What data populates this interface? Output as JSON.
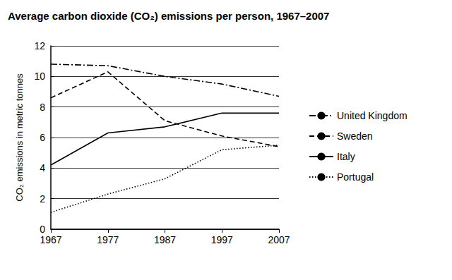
{
  "chart_data": {
    "type": "line",
    "title": "Average carbon dioxide (CO₂) emissions per person, 1967–2007",
    "y_label": "CO₂ emissions in metric tonnes",
    "categories": [
      "1967",
      "1977",
      "1987",
      "1997",
      "2007"
    ],
    "series": [
      {
        "name": "United Kingdom",
        "color": "#000000",
        "line_style": "dashdot",
        "values": [
          10.8,
          10.7,
          10.0,
          9.5,
          8.7
        ]
      },
      {
        "name": "Sweden",
        "color": "#000000",
        "line_style": "dashed",
        "values": [
          8.6,
          10.3,
          7.1,
          6.1,
          5.4
        ]
      },
      {
        "name": "Italy",
        "color": "#000000",
        "line_style": "solid",
        "values": [
          4.2,
          6.3,
          6.7,
          7.6,
          7.6
        ]
      },
      {
        "name": "Portugal",
        "color": "#000000",
        "line_style": "dotted",
        "values": [
          1.1,
          2.3,
          3.3,
          5.2,
          5.5
        ]
      }
    ],
    "ylim": [
      0,
      12
    ],
    "yticks": [
      0,
      2,
      4,
      6,
      8,
      10,
      12
    ],
    "grid": true,
    "legend": "right"
  }
}
